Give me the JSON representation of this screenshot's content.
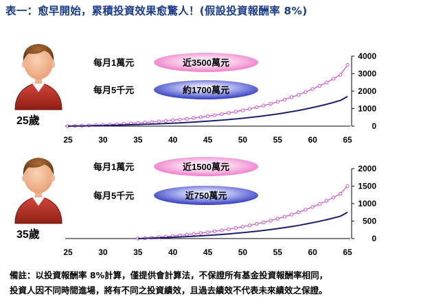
{
  "title": "表一：愈早開始，累積投資效果愈驚人！(假設投資報酬率 8%)",
  "colors": {
    "title": "#1a3c8c",
    "pink_series": "#d64cc9",
    "navy_series": "#1a1f6e",
    "pink_pill": "#f7a6da",
    "blue_pill": "#4a55cc"
  },
  "note": {
    "line1": "備註：以投資報酬率 8%計算，僅提供會計算法，不保證所有基金投資報酬率相同，",
    "line2": "投資人因不同時間進場，將有不同之投資績效，且過去績效不代表未來績效之保證。"
  },
  "chart_data": [
    {
      "type": "line",
      "age_label": "25歲",
      "person_icon": "person-icon",
      "x": [
        25,
        26,
        27,
        28,
        29,
        30,
        31,
        32,
        33,
        34,
        35,
        36,
        37,
        38,
        39,
        40,
        41,
        42,
        43,
        44,
        45,
        46,
        47,
        48,
        49,
        50,
        51,
        52,
        53,
        54,
        55,
        56,
        57,
        58,
        59,
        60,
        61,
        62,
        63,
        64,
        65
      ],
      "xlim": [
        25,
        65
      ],
      "xticks": [
        25,
        30,
        35,
        40,
        45,
        50,
        55,
        60,
        65
      ],
      "ylim": [
        0,
        4000
      ],
      "yticks": [
        0,
        1000,
        2000,
        3000,
        4000
      ],
      "grid": false,
      "series": [
        {
          "name": "每月1萬元",
          "annotation": "近3500萬元",
          "color": "#d64cc9",
          "marker": "circle",
          "values": [
            0,
            12,
            26,
            41,
            57,
            74,
            92,
            112,
            133,
            156,
            181,
            208,
            237,
            268,
            302,
            338,
            378,
            420,
            465,
            515,
            568,
            625,
            687,
            754,
            826,
            904,
            988,
            1079,
            1177,
            1283,
            1397,
            1521,
            1654,
            1799,
            1954,
            2122,
            2304,
            2500,
            2712,
            2941,
            3500
          ]
        },
        {
          "name": "每月5千元",
          "annotation": "約1700萬元",
          "color": "#1a1f6e",
          "marker": "none",
          "values": [
            0,
            6,
            13,
            20,
            28,
            37,
            46,
            56,
            67,
            78,
            91,
            104,
            118,
            134,
            151,
            169,
            189,
            210,
            233,
            257,
            284,
            313,
            344,
            377,
            413,
            452,
            494,
            540,
            589,
            642,
            699,
            760,
            827,
            899,
            977,
            1061,
            1152,
            1250,
            1356,
            1470,
            1700
          ]
        }
      ]
    },
    {
      "type": "line",
      "age_label": "35歲",
      "person_icon": "person-icon",
      "x": [
        25,
        26,
        27,
        28,
        29,
        30,
        31,
        32,
        33,
        34,
        35,
        36,
        37,
        38,
        39,
        40,
        41,
        42,
        43,
        44,
        45,
        46,
        47,
        48,
        49,
        50,
        51,
        52,
        53,
        54,
        55,
        56,
        57,
        58,
        59,
        60,
        61,
        62,
        63,
        64,
        65
      ],
      "xlim": [
        25,
        65
      ],
      "xticks": [
        25,
        30,
        35,
        40,
        45,
        50,
        55,
        60,
        65
      ],
      "ylim": [
        0,
        2000
      ],
      "yticks": [
        0,
        500,
        1000,
        1500,
        2000
      ],
      "grid": false,
      "series": [
        {
          "name": "每月1萬元",
          "annotation": "近1500萬元",
          "color": "#d64cc9",
          "marker": "circle",
          "values": [
            null,
            null,
            null,
            null,
            null,
            null,
            null,
            null,
            null,
            null,
            0,
            12,
            26,
            41,
            57,
            74,
            92,
            112,
            133,
            156,
            181,
            208,
            237,
            268,
            302,
            338,
            378,
            420,
            465,
            515,
            568,
            625,
            687,
            754,
            826,
            904,
            988,
            1079,
            1177,
            1283,
            1500
          ]
        },
        {
          "name": "每月5千元",
          "annotation": "近750萬元",
          "color": "#1a1f6e",
          "marker": "none",
          "values": [
            null,
            null,
            null,
            null,
            null,
            null,
            null,
            null,
            null,
            null,
            0,
            6,
            13,
            20,
            28,
            37,
            46,
            56,
            67,
            78,
            91,
            104,
            118,
            134,
            151,
            169,
            189,
            210,
            233,
            257,
            284,
            313,
            344,
            377,
            413,
            452,
            494,
            540,
            589,
            642,
            750
          ]
        }
      ]
    }
  ]
}
